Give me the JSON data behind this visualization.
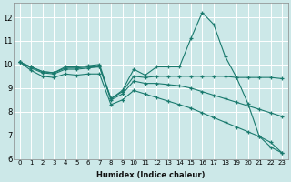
{
  "xlabel": "Humidex (Indice chaleur)",
  "bg_color": "#cce8e8",
  "grid_color": "#ffffff",
  "line_color": "#1a7a6e",
  "xlim": [
    -0.5,
    23.5
  ],
  "ylim": [
    6,
    12.6
  ],
  "yticks": [
    6,
    7,
    8,
    9,
    10,
    11,
    12
  ],
  "xticks": [
    0,
    1,
    2,
    3,
    4,
    5,
    6,
    7,
    8,
    9,
    10,
    11,
    12,
    13,
    14,
    15,
    16,
    17,
    18,
    19,
    20,
    21,
    22,
    23
  ],
  "lines": [
    [
      10.1,
      9.9,
      9.7,
      9.65,
      9.9,
      9.9,
      9.95,
      10.0,
      8.55,
      8.9,
      9.8,
      9.55,
      9.9,
      9.9,
      9.9,
      11.1,
      12.2,
      11.7,
      10.35,
      9.45,
      8.35,
      6.95,
      6.5,
      6.25
    ],
    [
      10.1,
      9.9,
      9.7,
      9.65,
      9.85,
      9.85,
      9.9,
      9.9,
      8.55,
      8.85,
      9.5,
      9.45,
      9.5,
      9.5,
      9.5,
      9.5,
      9.5,
      9.5,
      9.5,
      9.45,
      9.45,
      9.45,
      9.45,
      9.4
    ],
    [
      10.1,
      9.85,
      9.65,
      9.6,
      9.8,
      9.8,
      9.85,
      9.9,
      8.5,
      8.75,
      9.3,
      9.2,
      9.2,
      9.15,
      9.1,
      9.0,
      8.85,
      8.7,
      8.55,
      8.4,
      8.25,
      8.1,
      7.95,
      7.8
    ],
    [
      10.1,
      9.75,
      9.5,
      9.45,
      9.6,
      9.55,
      9.6,
      9.6,
      8.3,
      8.5,
      8.9,
      8.75,
      8.6,
      8.45,
      8.3,
      8.15,
      7.95,
      7.75,
      7.55,
      7.35,
      7.15,
      6.95,
      6.7,
      6.25
    ]
  ]
}
